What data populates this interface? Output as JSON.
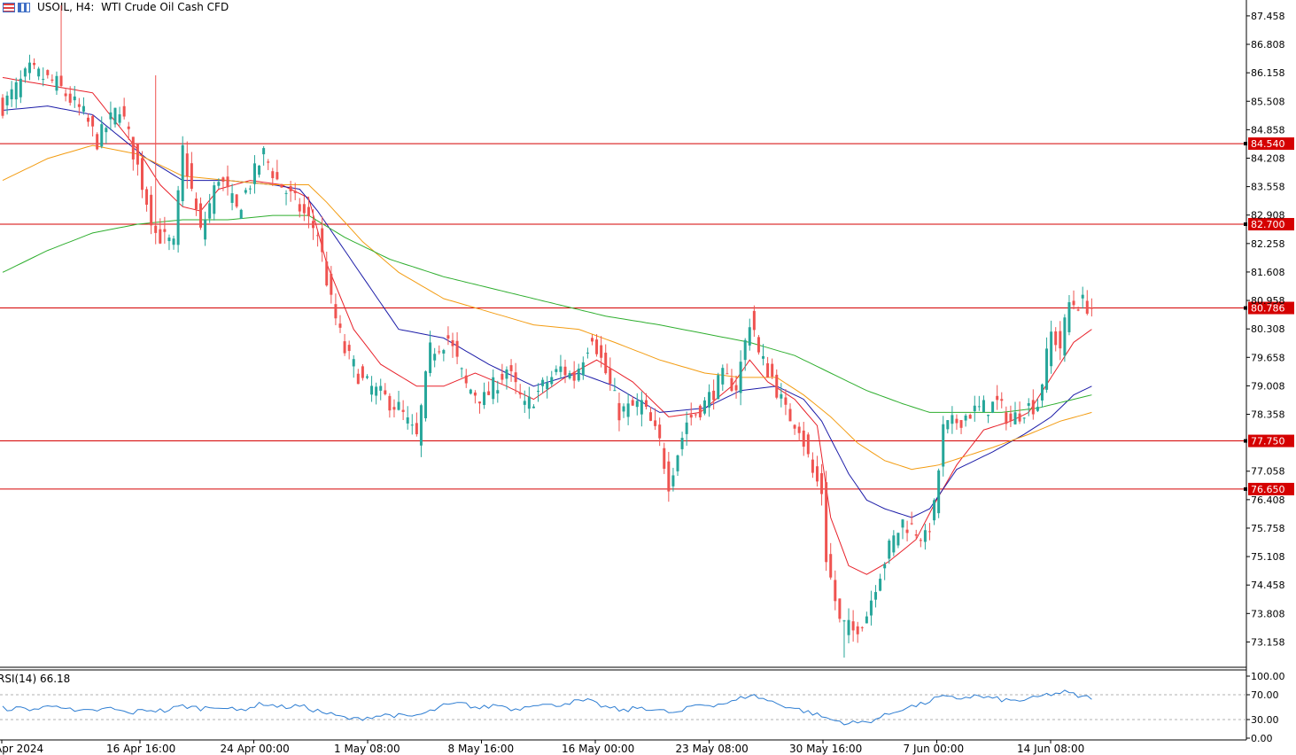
{
  "header": {
    "symbol": "USOIL",
    "timeframe": "H4:",
    "description": "WTI Crude Oil Cash CFD"
  },
  "colors": {
    "bull": "#26a69a",
    "bear": "#ef5350",
    "ma_red": "#e8212a",
    "ma_blue": "#1c1ca8",
    "ma_orange": "#f39c12",
    "ma_green": "#2eae2e",
    "level": "#d50000",
    "rsi": "#2d7dd2"
  },
  "chart_data": [
    {
      "type": "candlestick",
      "symbol": "USOIL",
      "timeframe": "H4",
      "ylim": [
        72.6,
        87.78
      ],
      "y_ticks": [
        "87.458",
        "86.808",
        "86.158",
        "85.508",
        "84.858",
        "84.208",
        "83.558",
        "82.908",
        "82.258",
        "81.608",
        "80.958",
        "80.308",
        "79.658",
        "79.008",
        "78.358",
        "77.058",
        "76.408",
        "75.758",
        "75.108",
        "74.458",
        "73.808",
        "73.158"
      ],
      "x_tick_labels": [
        "Apr 2024",
        "16 Apr 16:00",
        "24 Apr 00:00",
        "1 May 08:00",
        "8 May 16:00",
        "16 May 00:00",
        "23 May 08:00",
        "30 May 16:00",
        "7 Jun 00:00",
        "14 Jun 08:00"
      ],
      "horizontal_levels": [
        84.54,
        82.7,
        80.786,
        77.75,
        76.65
      ],
      "level_labels": [
        "84.540",
        "82.700",
        "80.786",
        "77.750",
        "76.650"
      ],
      "close_anchors": [
        [
          0,
          85.4
        ],
        [
          6,
          86.2
        ],
        [
          12,
          85.9
        ],
        [
          18,
          85.2
        ],
        [
          21,
          84.6
        ],
        [
          26,
          85.4
        ],
        [
          30,
          84.0
        ],
        [
          34,
          82.5
        ],
        [
          38,
          82.2
        ],
        [
          40,
          84.4
        ],
        [
          44,
          82.5
        ],
        [
          48,
          83.8
        ],
        [
          52,
          83.0
        ],
        [
          58,
          84.3
        ],
        [
          61,
          83.7
        ],
        [
          65,
          83.2
        ],
        [
          70,
          82.5
        ],
        [
          73,
          80.9
        ],
        [
          76,
          79.8
        ],
        [
          80,
          79.1
        ],
        [
          84,
          78.8
        ],
        [
          88,
          78.5
        ],
        [
          92,
          77.8
        ],
        [
          95,
          79.8
        ],
        [
          99,
          80.1
        ],
        [
          103,
          79.0
        ],
        [
          107,
          78.7
        ],
        [
          112,
          79.4
        ],
        [
          116,
          78.5
        ],
        [
          121,
          79.1
        ],
        [
          124,
          79.4
        ],
        [
          127,
          79.2
        ],
        [
          131,
          80.2
        ],
        [
          133,
          79.6
        ],
        [
          137,
          78.4
        ],
        [
          142,
          78.6
        ],
        [
          146,
          77.7
        ],
        [
          148,
          76.8
        ],
        [
          152,
          78.2
        ],
        [
          156,
          78.6
        ],
        [
          160,
          79.2
        ],
        [
          163,
          79.0
        ],
        [
          166,
          80.5
        ],
        [
          167,
          80.3
        ],
        [
          168,
          79.7
        ],
        [
          171,
          79.2
        ],
        [
          174,
          78.4
        ],
        [
          177,
          78.1
        ],
        [
          180,
          77.0
        ],
        [
          182,
          76.6
        ],
        [
          183,
          75.1
        ],
        [
          186,
          73.6
        ],
        [
          189,
          73.4
        ],
        [
          192,
          73.8
        ],
        [
          194,
          74.5
        ],
        [
          197,
          75.3
        ],
        [
          200,
          75.9
        ],
        [
          203,
          75.7
        ],
        [
          205,
          75.5
        ],
        [
          207,
          76.2
        ],
        [
          209,
          78.0
        ],
        [
          212,
          78.2
        ],
        [
          215,
          78.4
        ],
        [
          218,
          78.5
        ],
        [
          221,
          78.6
        ],
        [
          224,
          78.2
        ],
        [
          227,
          78.5
        ],
        [
          230,
          78.6
        ],
        [
          233,
          80.2
        ],
        [
          235,
          79.9
        ],
        [
          237,
          80.9
        ],
        [
          240,
          80.9
        ],
        [
          242,
          80.8
        ]
      ],
      "moving_averages": [
        {
          "color": "#e8212a",
          "anchors": [
            [
              0,
              86.05
            ],
            [
              20,
              85.7
            ],
            [
              30,
              84.4
            ],
            [
              35,
              83.6
            ],
            [
              40,
              83.1
            ],
            [
              44,
              83.0
            ],
            [
              48,
              83.5
            ],
            [
              55,
              83.7
            ],
            [
              62,
              83.6
            ],
            [
              68,
              83.3
            ],
            [
              72,
              81.8
            ],
            [
              78,
              80.3
            ],
            [
              84,
              79.5
            ],
            [
              92,
              79.0
            ],
            [
              98,
              79.0
            ],
            [
              105,
              79.3
            ],
            [
              112,
              79.0
            ],
            [
              118,
              78.7
            ],
            [
              125,
              79.2
            ],
            [
              132,
              79.6
            ],
            [
              140,
              79.1
            ],
            [
              148,
              78.3
            ],
            [
              155,
              78.4
            ],
            [
              162,
              79.0
            ],
            [
              166,
              79.6
            ],
            [
              170,
              79.1
            ],
            [
              176,
              78.7
            ],
            [
              181,
              78.1
            ],
            [
              184,
              76.0
            ],
            [
              188,
              74.9
            ],
            [
              192,
              74.7
            ],
            [
              197,
              75.0
            ],
            [
              203,
              75.5
            ],
            [
              207,
              76.3
            ],
            [
              212,
              77.2
            ],
            [
              218,
              78.0
            ],
            [
              224,
              78.2
            ],
            [
              228,
              78.4
            ],
            [
              233,
              79.2
            ],
            [
              238,
              80.0
            ],
            [
              242,
              80.3
            ]
          ]
        },
        {
          "color": "#1c1ca8",
          "anchors": [
            [
              0,
              85.3
            ],
            [
              10,
              85.4
            ],
            [
              20,
              85.2
            ],
            [
              26,
              84.7
            ],
            [
              32,
              84.2
            ],
            [
              40,
              83.7
            ],
            [
              50,
              83.7
            ],
            [
              60,
              83.6
            ],
            [
              66,
              83.5
            ],
            [
              70,
              83.0
            ],
            [
              80,
              81.5
            ],
            [
              88,
              80.3
            ],
            [
              98,
              80.1
            ],
            [
              108,
              79.5
            ],
            [
              118,
              79.0
            ],
            [
              128,
              79.3
            ],
            [
              136,
              79.0
            ],
            [
              146,
              78.4
            ],
            [
              156,
              78.5
            ],
            [
              164,
              78.9
            ],
            [
              172,
              79.0
            ],
            [
              178,
              78.7
            ],
            [
              182,
              78.2
            ],
            [
              188,
              77.0
            ],
            [
              192,
              76.4
            ],
            [
              196,
              76.2
            ],
            [
              202,
              76.0
            ],
            [
              206,
              76.2
            ],
            [
              212,
              77.1
            ],
            [
              220,
              77.5
            ],
            [
              227,
              77.9
            ],
            [
              233,
              78.3
            ],
            [
              238,
              78.8
            ],
            [
              242,
              79.0
            ]
          ]
        },
        {
          "color": "#f39c12",
          "anchors": [
            [
              0,
              83.7
            ],
            [
              10,
              84.2
            ],
            [
              20,
              84.5
            ],
            [
              30,
              84.3
            ],
            [
              40,
              83.8
            ],
            [
              50,
              83.7
            ],
            [
              60,
              83.6
            ],
            [
              68,
              83.6
            ],
            [
              72,
              83.2
            ],
            [
              80,
              82.3
            ],
            [
              88,
              81.6
            ],
            [
              98,
              81.0
            ],
            [
              108,
              80.7
            ],
            [
              118,
              80.4
            ],
            [
              128,
              80.3
            ],
            [
              136,
              80.0
            ],
            [
              146,
              79.6
            ],
            [
              156,
              79.3
            ],
            [
              164,
              79.2
            ],
            [
              172,
              79.2
            ],
            [
              178,
              78.8
            ],
            [
              184,
              78.3
            ],
            [
              190,
              77.7
            ],
            [
              196,
              77.3
            ],
            [
              202,
              77.1
            ],
            [
              208,
              77.2
            ],
            [
              214,
              77.4
            ],
            [
              220,
              77.6
            ],
            [
              228,
              77.9
            ],
            [
              235,
              78.2
            ],
            [
              242,
              78.4
            ]
          ]
        },
        {
          "color": "#2eae2e",
          "anchors": [
            [
              0,
              81.6
            ],
            [
              10,
              82.1
            ],
            [
              20,
              82.5
            ],
            [
              30,
              82.7
            ],
            [
              40,
              82.8
            ],
            [
              50,
              82.8
            ],
            [
              60,
              82.9
            ],
            [
              68,
              82.9
            ],
            [
              76,
              82.4
            ],
            [
              86,
              81.9
            ],
            [
              98,
              81.5
            ],
            [
              110,
              81.2
            ],
            [
              122,
              80.9
            ],
            [
              134,
              80.6
            ],
            [
              146,
              80.4
            ],
            [
              156,
              80.2
            ],
            [
              166,
              80.0
            ],
            [
              176,
              79.7
            ],
            [
              184,
              79.3
            ],
            [
              192,
              78.9
            ],
            [
              200,
              78.6
            ],
            [
              206,
              78.4
            ],
            [
              214,
              78.4
            ],
            [
              222,
              78.4
            ],
            [
              230,
              78.5
            ],
            [
              238,
              78.7
            ],
            [
              242,
              78.8
            ]
          ]
        }
      ]
    },
    {
      "type": "line",
      "name": "RSI(14)",
      "label": "RSI(14) 66.18",
      "value": 66.18,
      "ylim": [
        0,
        100
      ],
      "y_ticks": [
        "100.00",
        "70.00",
        "30.00",
        "0.00"
      ],
      "levels": [
        70,
        30
      ],
      "anchors": [
        [
          0,
          48
        ],
        [
          8,
          47
        ],
        [
          12,
          55
        ],
        [
          16,
          42
        ],
        [
          20,
          44
        ],
        [
          24,
          48
        ],
        [
          28,
          40
        ],
        [
          32,
          46
        ],
        [
          36,
          44
        ],
        [
          40,
          52
        ],
        [
          44,
          48
        ],
        [
          48,
          52
        ],
        [
          52,
          44
        ],
        [
          58,
          56
        ],
        [
          62,
          50
        ],
        [
          66,
          52
        ],
        [
          70,
          44
        ],
        [
          74,
          36
        ],
        [
          78,
          30
        ],
        [
          82,
          35
        ],
        [
          86,
          38
        ],
        [
          90,
          34
        ],
        [
          94,
          40
        ],
        [
          98,
          52
        ],
        [
          102,
          56
        ],
        [
          106,
          48
        ],
        [
          110,
          54
        ],
        [
          114,
          46
        ],
        [
          118,
          56
        ],
        [
          122,
          52
        ],
        [
          126,
          58
        ],
        [
          130,
          60
        ],
        [
          134,
          50
        ],
        [
          138,
          44
        ],
        [
          142,
          50
        ],
        [
          146,
          44
        ],
        [
          150,
          40
        ],
        [
          154,
          54
        ],
        [
          158,
          54
        ],
        [
          162,
          58
        ],
        [
          166,
          70
        ],
        [
          168,
          66
        ],
        [
          172,
          56
        ],
        [
          176,
          48
        ],
        [
          180,
          40
        ],
        [
          184,
          30
        ],
        [
          188,
          24
        ],
        [
          192,
          26
        ],
        [
          196,
          36
        ],
        [
          200,
          48
        ],
        [
          204,
          54
        ],
        [
          208,
          66
        ],
        [
          212,
          64
        ],
        [
          216,
          68
        ],
        [
          220,
          64
        ],
        [
          224,
          60
        ],
        [
          228,
          62
        ],
        [
          232,
          70
        ],
        [
          236,
          74
        ],
        [
          240,
          66
        ],
        [
          242,
          66
        ]
      ]
    }
  ]
}
